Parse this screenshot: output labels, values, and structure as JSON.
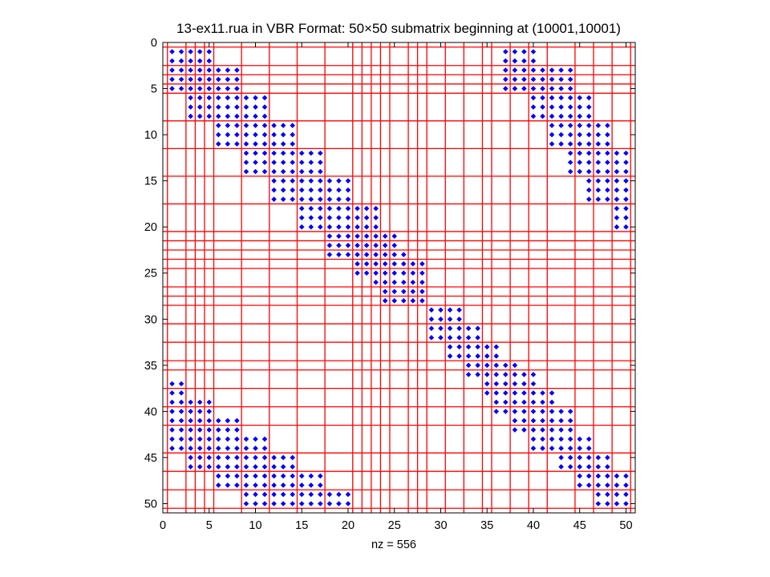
{
  "chart_data": {
    "type": "scatter",
    "title": "13-ex11.rua in VBR Format: 50×50 submatrix beginning at (10001,10001)",
    "xlabel": "nz = 556",
    "ylabel": "",
    "xlim": [
      0,
      51
    ],
    "ylim": [
      0,
      51
    ],
    "y_reversed": true,
    "x_ticks": [
      0,
      5,
      10,
      15,
      20,
      25,
      30,
      35,
      40,
      45,
      50
    ],
    "y_ticks": [
      0,
      5,
      10,
      15,
      20,
      25,
      30,
      35,
      40,
      45,
      50
    ],
    "grid": false,
    "marker": "diamond",
    "marker_color": "#0000ff",
    "partition_color": "#ff0000",
    "block_partitions": [
      0.5,
      2.5,
      3.5,
      4.5,
      5.5,
      8.5,
      11.5,
      14.5,
      17.5,
      20.5,
      21.5,
      22.5,
      23.5,
      24.5,
      26.5,
      27.5,
      28.5,
      30.5,
      32.5,
      34.5,
      35.5,
      37.5,
      39.5,
      41.5,
      44.5,
      46.5,
      48.5,
      50.5
    ],
    "nonzero_blocks": [
      {
        "rows": [
          1,
          5
        ],
        "cols": [
          1,
          5
        ]
      },
      {
        "rows": [
          3,
          8
        ],
        "cols": [
          3,
          8
        ]
      },
      {
        "rows": [
          6,
          11
        ],
        "cols": [
          6,
          11
        ]
      },
      {
        "rows": [
          9,
          14
        ],
        "cols": [
          9,
          14
        ]
      },
      {
        "rows": [
          12,
          17
        ],
        "cols": [
          12,
          17
        ]
      },
      {
        "rows": [
          15,
          20
        ],
        "cols": [
          15,
          20
        ]
      },
      {
        "rows": [
          18,
          23
        ],
        "cols": [
          18,
          23
        ]
      },
      {
        "rows": [
          21,
          25
        ],
        "cols": [
          21,
          25
        ]
      },
      {
        "rows": [
          23,
          26
        ],
        "cols": [
          23,
          26
        ]
      },
      {
        "rows": [
          24,
          28
        ],
        "cols": [
          24,
          28
        ]
      },
      {
        "rows": [
          29,
          32
        ],
        "cols": [
          29,
          32
        ]
      },
      {
        "rows": [
          31,
          34
        ],
        "cols": [
          31,
          34
        ]
      },
      {
        "rows": [
          33,
          36
        ],
        "cols": [
          33,
          36
        ]
      },
      {
        "rows": [
          35,
          38
        ],
        "cols": [
          35,
          38
        ]
      },
      {
        "rows": [
          36,
          40
        ],
        "cols": [
          36,
          40
        ]
      },
      {
        "rows": [
          38,
          42
        ],
        "cols": [
          38,
          42
        ]
      },
      {
        "rows": [
          40,
          44
        ],
        "cols": [
          40,
          44
        ]
      },
      {
        "rows": [
          43,
          46
        ],
        "cols": [
          43,
          46
        ]
      },
      {
        "rows": [
          45,
          48
        ],
        "cols": [
          45,
          48
        ]
      },
      {
        "rows": [
          47,
          50
        ],
        "cols": [
          47,
          50
        ]
      },
      {
        "rows": [
          1,
          5
        ],
        "cols": [
          37,
          40
        ]
      },
      {
        "rows": [
          3,
          8
        ],
        "cols": [
          40,
          44
        ]
      },
      {
        "rows": [
          6,
          11
        ],
        "cols": [
          42,
          46
        ]
      },
      {
        "rows": [
          9,
          14
        ],
        "cols": [
          44,
          48
        ]
      },
      {
        "rows": [
          12,
          17
        ],
        "cols": [
          46,
          50
        ]
      },
      {
        "rows": [
          18,
          20
        ],
        "cols": [
          49,
          50
        ]
      },
      {
        "rows": [
          37,
          42
        ],
        "cols": [
          1,
          2
        ]
      },
      {
        "rows": [
          39,
          44
        ],
        "cols": [
          1,
          5
        ]
      },
      {
        "rows": [
          41,
          46
        ],
        "cols": [
          3,
          8
        ]
      },
      {
        "rows": [
          43,
          48
        ],
        "cols": [
          6,
          11
        ]
      },
      {
        "rows": [
          45,
          50
        ],
        "cols": [
          9,
          14
        ]
      },
      {
        "rows": [
          47,
          50
        ],
        "cols": [
          12,
          17
        ]
      },
      {
        "rows": [
          49,
          50
        ],
        "cols": [
          18,
          20
        ]
      }
    ]
  }
}
